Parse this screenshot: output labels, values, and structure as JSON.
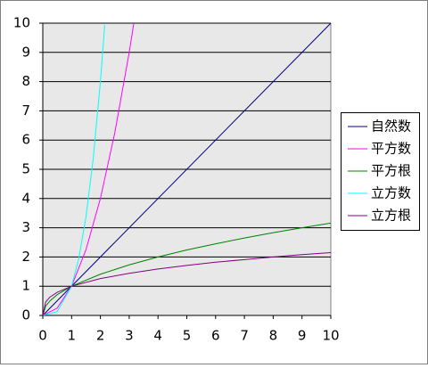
{
  "chart_data": {
    "type": "line",
    "xlim": [
      0,
      10
    ],
    "xticks": [
      0,
      1,
      2,
      3,
      4,
      5,
      6,
      7,
      8,
      9,
      10
    ],
    "ylim": [
      0,
      10
    ],
    "yticks": [
      0,
      1,
      2,
      3,
      4,
      5,
      6,
      7,
      8,
      9,
      10
    ],
    "grid": true,
    "legend": "right",
    "series": [
      {
        "name": "自然数",
        "color": "#000080",
        "x": [
          0,
          10
        ],
        "values": [
          0,
          10
        ]
      },
      {
        "name": "平方数",
        "color": "#ff00ff",
        "x": [
          0,
          0.5,
          1,
          1.5,
          2,
          2.5,
          3,
          3.16
        ],
        "values": [
          0,
          0.25,
          1,
          2.25,
          4,
          6.25,
          9,
          10
        ]
      },
      {
        "name": "平方根",
        "color": "#008000",
        "x": [
          0,
          0.1,
          0.25,
          0.5,
          1,
          2,
          3,
          4,
          5,
          6,
          7,
          8,
          9,
          10
        ],
        "values": [
          0,
          0.32,
          0.5,
          0.71,
          1,
          1.41,
          1.73,
          2,
          2.24,
          2.45,
          2.65,
          2.83,
          3,
          3.16
        ]
      },
      {
        "name": "立方数",
        "color": "#00ffff",
        "x": [
          0,
          0.5,
          1,
          1.25,
          1.5,
          1.75,
          2,
          2.15
        ],
        "values": [
          0,
          0.13,
          1,
          1.95,
          3.38,
          5.36,
          8,
          9.94
        ]
      },
      {
        "name": "立方根",
        "color": "#800080",
        "x": [
          0,
          0.1,
          0.25,
          0.5,
          1,
          2,
          3,
          4,
          5,
          6,
          7,
          8,
          9,
          10
        ],
        "values": [
          0,
          0.46,
          0.63,
          0.79,
          1,
          1.26,
          1.44,
          1.59,
          1.71,
          1.82,
          1.91,
          2,
          2.08,
          2.15
        ]
      }
    ]
  }
}
